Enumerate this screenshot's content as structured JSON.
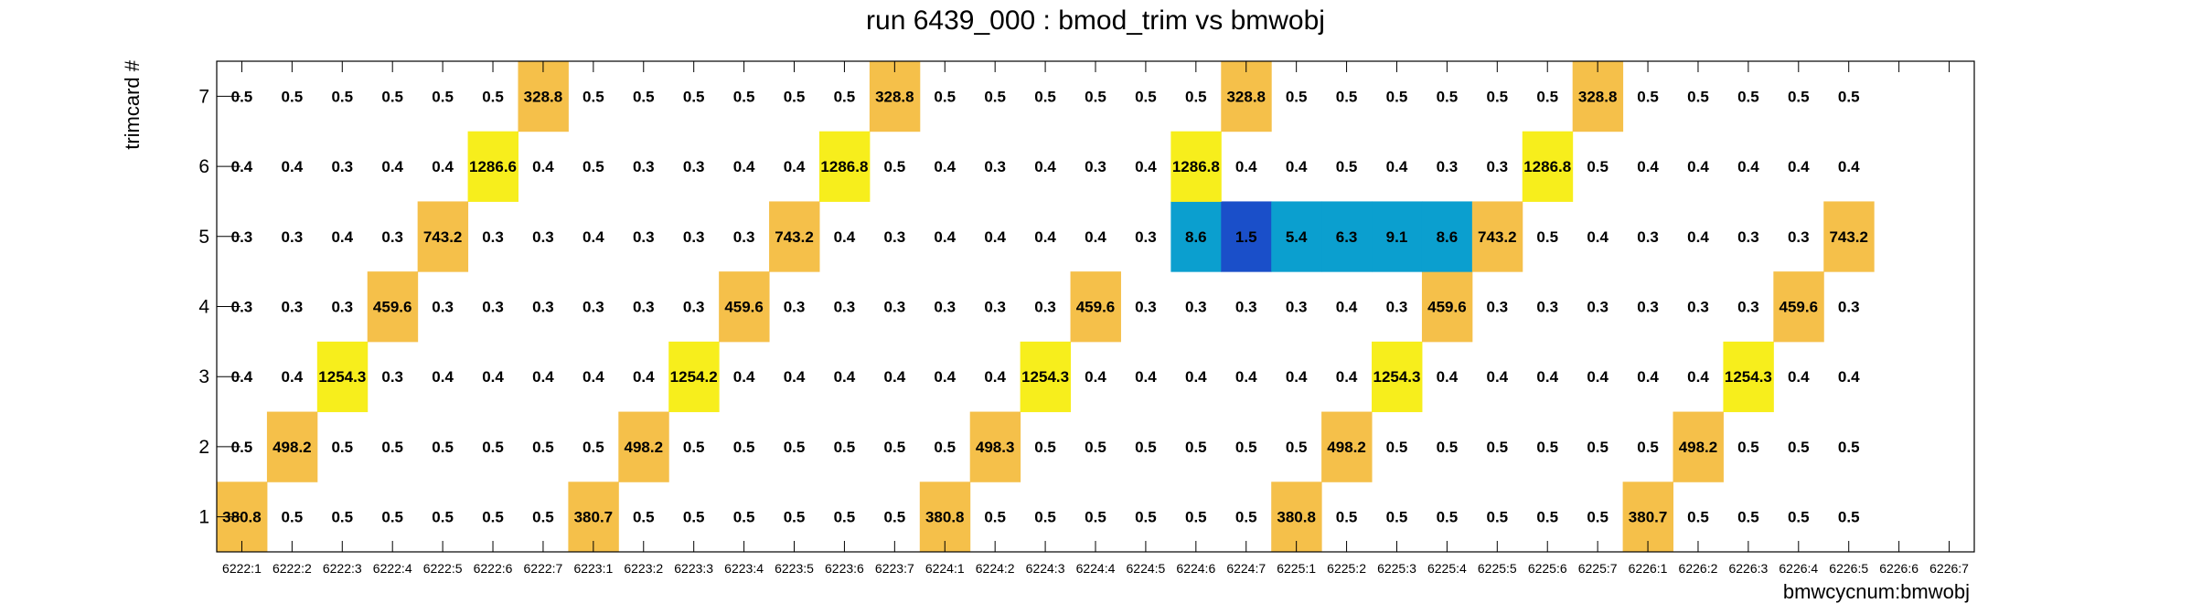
{
  "chart_data": {
    "type": "heatmap",
    "title": "run 6439_000 : bmod_trim vs bmwobj",
    "xlabel": "bmwcycnum:bmwobj",
    "ylabel": "trimcard #",
    "grid": false,
    "palette": {
      "low": "#1a4fc9",
      "mid": "#0b9fcf",
      "high_low": "#f5c04a",
      "high": "#f7ee1c"
    },
    "x_categories": [
      "6222:1",
      "6222:2",
      "6222:3",
      "6222:4",
      "6222:5",
      "6222:6",
      "6222:7",
      "6223:1",
      "6223:2",
      "6223:3",
      "6223:4",
      "6223:5",
      "6223:6",
      "6223:7",
      "6224:1",
      "6224:2",
      "6224:3",
      "6224:4",
      "6224:5",
      "6224:6",
      "6224:7",
      "6225:1",
      "6225:2",
      "6225:3",
      "6225:4",
      "6225:5",
      "6225:6",
      "6225:7",
      "6226:1",
      "6226:2",
      "6226:3",
      "6226:4",
      "6226:5",
      "6226:6",
      "6226:7"
    ],
    "y_categories": [
      "1",
      "2",
      "3",
      "4",
      "5",
      "6",
      "7"
    ],
    "values": [
      [
        380.8,
        0.5,
        0.5,
        0.5,
        0.5,
        0.5,
        0.5,
        380.7,
        0.5,
        0.5,
        0.5,
        0.5,
        0.5,
        0.5,
        380.8,
        0.5,
        0.5,
        0.5,
        0.5,
        0.5,
        0.5,
        380.8,
        0.5,
        0.5,
        0.5,
        0.5,
        0.5,
        0.5,
        380.7,
        0.5,
        0.5,
        0.5,
        0.5,
        null,
        null
      ],
      [
        0.5,
        498.2,
        0.5,
        0.5,
        0.5,
        0.5,
        0.5,
        0.5,
        498.2,
        0.5,
        0.5,
        0.5,
        0.5,
        0.5,
        0.5,
        498.3,
        0.5,
        0.5,
        0.5,
        0.5,
        0.5,
        0.5,
        498.2,
        0.5,
        0.5,
        0.5,
        0.5,
        0.5,
        0.5,
        498.2,
        0.5,
        0.5,
        0.5,
        null,
        null
      ],
      [
        0.4,
        0.4,
        1254.3,
        0.3,
        0.4,
        0.4,
        0.4,
        0.4,
        0.4,
        1254.2,
        0.4,
        0.4,
        0.4,
        0.4,
        0.4,
        0.4,
        1254.3,
        0.4,
        0.4,
        0.4,
        0.4,
        0.4,
        0.4,
        1254.3,
        0.4,
        0.4,
        0.4,
        0.4,
        0.4,
        0.4,
        1254.3,
        0.4,
        0.4,
        null,
        null
      ],
      [
        0.3,
        0.3,
        0.3,
        459.6,
        0.3,
        0.3,
        0.3,
        0.3,
        0.3,
        0.3,
        459.6,
        0.3,
        0.3,
        0.3,
        0.3,
        0.3,
        0.3,
        459.6,
        0.3,
        0.3,
        0.3,
        0.3,
        0.4,
        0.3,
        459.6,
        0.3,
        0.3,
        0.3,
        0.3,
        0.3,
        0.3,
        459.6,
        0.3,
        null,
        null
      ],
      [
        0.3,
        0.3,
        0.4,
        0.3,
        743.2,
        0.3,
        0.3,
        0.4,
        0.3,
        0.3,
        0.3,
        743.2,
        0.4,
        0.3,
        0.4,
        0.4,
        0.4,
        0.4,
        0.3,
        8.6,
        1.5,
        5.4,
        6.3,
        9.1,
        8.6,
        743.2,
        0.5,
        0.4,
        0.3,
        0.4,
        0.3,
        0.3,
        743.2,
        null,
        null
      ],
      [
        0.4,
        0.4,
        0.3,
        0.4,
        0.4,
        1286.6,
        0.4,
        0.5,
        0.3,
        0.3,
        0.4,
        0.4,
        1286.8,
        0.5,
        0.4,
        0.3,
        0.4,
        0.3,
        0.4,
        1286.8,
        0.4,
        0.4,
        0.5,
        0.4,
        0.3,
        0.3,
        1286.8,
        0.5,
        0.4,
        0.4,
        0.4,
        0.4,
        0.4,
        null,
        null
      ],
      [
        0.5,
        0.5,
        0.5,
        0.5,
        0.5,
        0.5,
        328.8,
        0.5,
        0.5,
        0.5,
        0.5,
        0.5,
        0.5,
        328.8,
        0.5,
        0.5,
        0.5,
        0.5,
        0.5,
        0.5,
        328.8,
        0.5,
        0.5,
        0.5,
        0.5,
        0.5,
        0.5,
        328.8,
        0.5,
        0.5,
        0.5,
        0.5,
        0.5,
        null,
        null
      ]
    ]
  }
}
